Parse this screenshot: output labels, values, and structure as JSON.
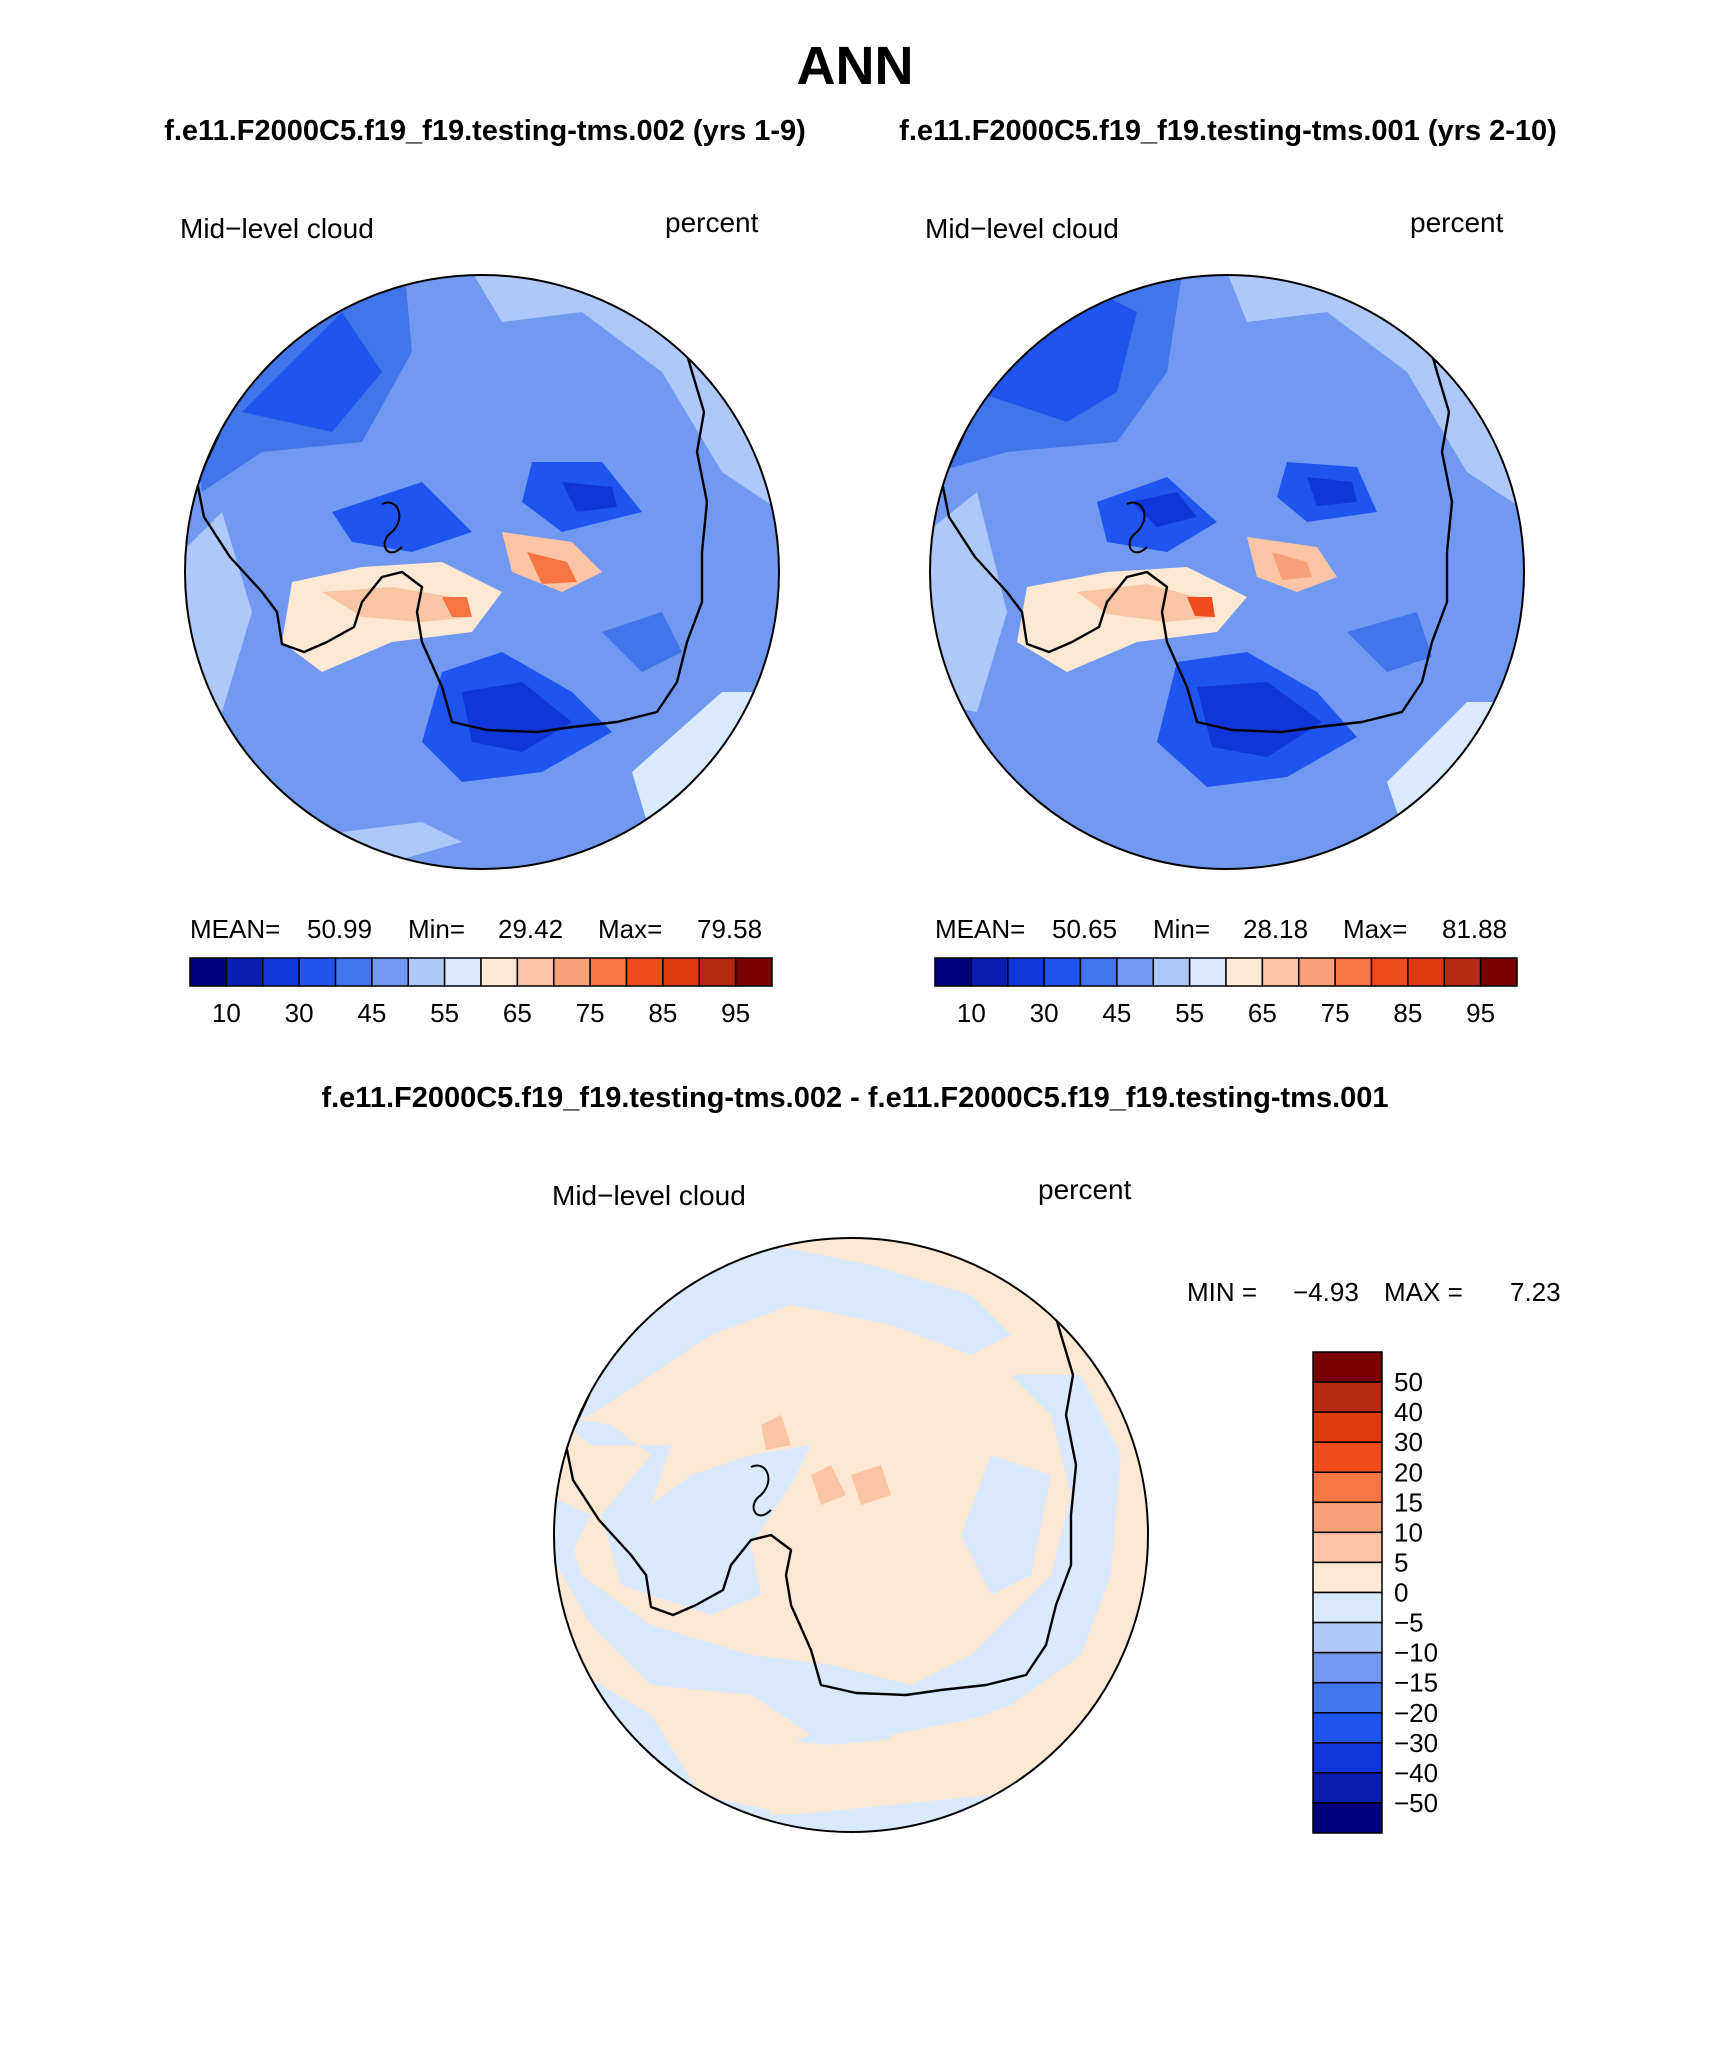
{
  "page": {
    "title": "ANN",
    "subtitle_left": "f.e11.F2000C5.f19_f19.testing-tms.002 (yrs 1-9)",
    "subtitle_right": "f.e11.F2000C5.f19_f19.testing-tms.001 (yrs 2-10)",
    "diff_title": "f.e11.F2000C5.f19_f19.testing-tms.002 - f.e11.F2000C5.f19_f19.testing-tms.001"
  },
  "chart_data": [
    {
      "type": "heatmap",
      "projection": "south-polar-stereographic",
      "variable": "Mid−level cloud",
      "units": "percent",
      "case": "f.e11.F2000C5.f19_f19.testing-tms.002 (yrs 1-9)",
      "stats": {
        "mean_label": "MEAN=",
        "mean": "50.99",
        "min_label": "Min=",
        "min": "29.42",
        "max_label": "Max=",
        "max": "79.58"
      },
      "levels": [
        10,
        20,
        30,
        40,
        45,
        50,
        55,
        60,
        65,
        70,
        75,
        80,
        85,
        90,
        95
      ],
      "tick_labels": [
        "10",
        "30",
        "45",
        "55",
        "65",
        "75",
        "85",
        "95"
      ],
      "colors": [
        "#000080",
        "#0a1fb0",
        "#1035d8",
        "#1f55ee",
        "#4275ea",
        "#7199f2",
        "#aec8fa",
        "#d9eaff",
        "#fde8d4",
        "#fbc4a4",
        "#f7a07a",
        "#f67542",
        "#ef4d1b",
        "#de3b10",
        "#b82812",
        "#7a0000"
      ]
    },
    {
      "type": "heatmap",
      "projection": "south-polar-stereographic",
      "variable": "Mid−level cloud",
      "units": "percent",
      "case": "f.e11.F2000C5.f19_f19.testing-tms.001 (yrs 2-10)",
      "stats": {
        "mean_label": "MEAN=",
        "mean": "50.65",
        "min_label": "Min=",
        "min": "28.18",
        "max_label": "Max=",
        "max": "81.88"
      },
      "levels": [
        10,
        20,
        30,
        40,
        45,
        50,
        55,
        60,
        65,
        70,
        75,
        80,
        85,
        90,
        95
      ],
      "tick_labels": [
        "10",
        "30",
        "45",
        "55",
        "65",
        "75",
        "85",
        "95"
      ],
      "colors": [
        "#000080",
        "#0a1fb0",
        "#1035d8",
        "#1f55ee",
        "#4275ea",
        "#7199f2",
        "#aec8fa",
        "#d9eaff",
        "#fde8d4",
        "#fbc4a4",
        "#f7a07a",
        "#f67542",
        "#ef4d1b",
        "#de3b10",
        "#b82812",
        "#7a0000"
      ]
    },
    {
      "type": "heatmap",
      "projection": "south-polar-stereographic",
      "variable": "Mid−level cloud",
      "units": "percent",
      "case": "f.e11.F2000C5.f19_f19.testing-tms.002 - f.e11.F2000C5.f19_f19.testing-tms.001",
      "stats": {
        "min_label": "MIN =",
        "min": "−4.93",
        "max_label": "MAX =",
        "max": "7.23"
      },
      "levels": [
        -50,
        -40,
        -30,
        -20,
        -15,
        -10,
        -5,
        0,
        5,
        10,
        15,
        20,
        30,
        40,
        50
      ],
      "tick_labels": [
        "50",
        "40",
        "30",
        "20",
        "15",
        "10",
        "5",
        "0",
        "−5",
        "−10",
        "−15",
        "−20",
        "−30",
        "−40",
        "−50"
      ],
      "colors_top_to_bottom": [
        "#7a0000",
        "#b82812",
        "#de3b10",
        "#ef4d1b",
        "#f67542",
        "#f7a07a",
        "#fbc4a4",
        "#fde8d4",
        "#d9eaff",
        "#aec8fa",
        "#7199f2",
        "#4275ea",
        "#1f55ee",
        "#1035d8",
        "#0a1fb0",
        "#000080"
      ]
    }
  ]
}
